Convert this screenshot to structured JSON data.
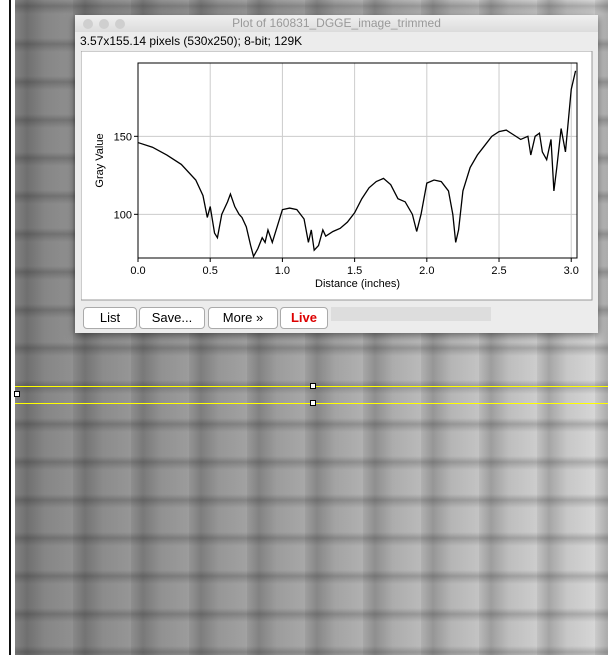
{
  "window": {
    "title": "Plot of 160831_DGGE_image_trimmed",
    "info": "3.57x155.14 pixels (530x250); 8-bit; 129K"
  },
  "buttons": [
    "List",
    "Save...",
    "More »",
    "Live"
  ],
  "chart_data": {
    "type": "line",
    "x_label": "Distance (inches)",
    "y_label": "Gray Value",
    "x": [
      0.0,
      0.1,
      0.2,
      0.3,
      0.4,
      0.45,
      0.48,
      0.5,
      0.53,
      0.55,
      0.58,
      0.62,
      0.64,
      0.67,
      0.7,
      0.72,
      0.75,
      0.78,
      0.8,
      0.83,
      0.86,
      0.88,
      0.9,
      0.93,
      0.95,
      1.0,
      1.05,
      1.1,
      1.15,
      1.18,
      1.2,
      1.22,
      1.25,
      1.28,
      1.3,
      1.35,
      1.4,
      1.45,
      1.5,
      1.55,
      1.6,
      1.65,
      1.7,
      1.75,
      1.8,
      1.85,
      1.9,
      1.93,
      1.96,
      2.0,
      2.05,
      2.1,
      2.15,
      2.18,
      2.2,
      2.22,
      2.25,
      2.3,
      2.35,
      2.4,
      2.45,
      2.5,
      2.55,
      2.6,
      2.65,
      2.7,
      2.72,
      2.75,
      2.78,
      2.8,
      2.83,
      2.86,
      2.88,
      2.9,
      2.93,
      2.96,
      3.0,
      3.03
    ],
    "values": [
      146,
      143,
      138,
      132,
      122,
      112,
      98,
      105,
      88,
      85,
      100,
      108,
      113,
      105,
      100,
      98,
      92,
      80,
      73,
      78,
      85,
      82,
      90,
      82,
      88,
      103,
      104,
      103,
      97,
      82,
      90,
      77,
      80,
      90,
      86,
      89,
      91,
      95,
      101,
      110,
      117,
      121,
      123,
      119,
      110,
      108,
      100,
      89,
      100,
      120,
      122,
      121,
      115,
      100,
      82,
      90,
      115,
      130,
      138,
      144,
      150,
      153,
      154,
      151,
      148,
      150,
      138,
      150,
      152,
      140,
      135,
      148,
      115,
      130,
      155,
      140,
      180,
      192
    ],
    "color": "#000000",
    "xlim": [
      0,
      3.04
    ],
    "ylim": [
      72,
      197
    ],
    "xticks": [
      {
        "value": 0,
        "label": "0.0"
      },
      0.5,
      {
        "value": 1,
        "label": "1.0"
      },
      1.5,
      {
        "value": 2,
        "label": "2.0"
      },
      2.5,
      {
        "value": 3,
        "label": "3.0"
      }
    ],
    "yticks": [
      100,
      150
    ],
    "grid": true
  }
}
